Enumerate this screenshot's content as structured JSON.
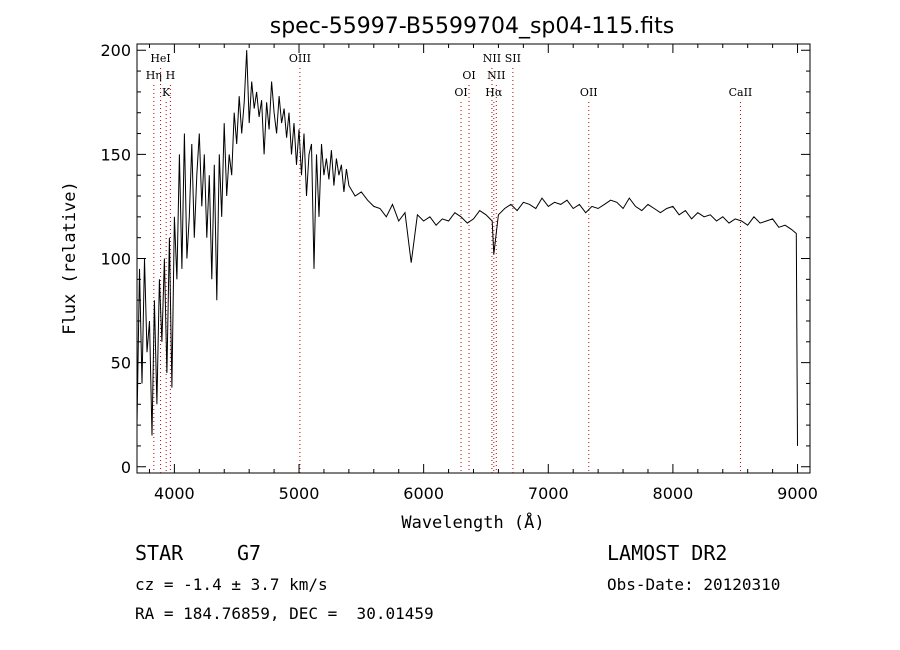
{
  "chart_data": {
    "type": "line",
    "title": "spec-55997-B5599704_sp04-115.fits",
    "xlabel": "Wavelength (Å)",
    "ylabel": "Flux (relative)",
    "xlim": [
      3700,
      9100
    ],
    "ylim": [
      -3,
      203
    ],
    "xticks": [
      4000,
      5000,
      6000,
      7000,
      8000,
      9000
    ],
    "yticks": [
      0,
      50,
      100,
      150,
      200
    ],
    "grid": false,
    "line_color": "#000000",
    "marker_color": "#c00000",
    "series": [
      {
        "x": [
          3700,
          3720,
          3740,
          3760,
          3780,
          3800,
          3820,
          3840,
          3860,
          3880,
          3900,
          3920,
          3940,
          3960,
          3980,
          4000,
          4020,
          4040,
          4060,
          4080,
          4100,
          4120,
          4140,
          4160,
          4180,
          4200,
          4220,
          4240,
          4260,
          4280,
          4300,
          4320,
          4340,
          4360,
          4380,
          4400,
          4420,
          4440,
          4460,
          4480,
          4500,
          4520,
          4540,
          4560,
          4580,
          4600,
          4620,
          4640,
          4660,
          4680,
          4700,
          4720,
          4740,
          4760,
          4780,
          4800,
          4820,
          4840,
          4860,
          4880,
          4900,
          4920,
          4940,
          4960,
          4980,
          5000,
          5020,
          5040,
          5060,
          5080,
          5100,
          5120,
          5140,
          5160,
          5180,
          5200,
          5220,
          5240,
          5260,
          5280,
          5300,
          5320,
          5340,
          5360,
          5380,
          5400,
          5450,
          5500,
          5550,
          5600,
          5650,
          5700,
          5750,
          5800,
          5850,
          5900,
          5950,
          6000,
          6050,
          6100,
          6150,
          6200,
          6250,
          6300,
          6350,
          6400,
          6450,
          6500,
          6550,
          6563,
          6600,
          6650,
          6700,
          6750,
          6800,
          6850,
          6900,
          6950,
          7000,
          7050,
          7100,
          7150,
          7200,
          7250,
          7300,
          7350,
          7400,
          7450,
          7500,
          7550,
          7600,
          7650,
          7700,
          7750,
          7800,
          7850,
          7900,
          7950,
          8000,
          8050,
          8100,
          8150,
          8200,
          8250,
          8300,
          8350,
          8400,
          8450,
          8500,
          8550,
          8600,
          8650,
          8700,
          8750,
          8800,
          8850,
          8900,
          8950,
          8990,
          9000
        ],
        "y": [
          20,
          95,
          40,
          100,
          55,
          70,
          15,
          80,
          30,
          90,
          60,
          100,
          45,
          110,
          38,
          120,
          90,
          150,
          95,
          160,
          100,
          120,
          155,
          110,
          140,
          160,
          125,
          150,
          110,
          140,
          90,
          145,
          80,
          150,
          120,
          165,
          130,
          150,
          140,
          170,
          155,
          178,
          160,
          175,
          200,
          165,
          185,
          172,
          180,
          168,
          176,
          150,
          175,
          162,
          185,
          170,
          160,
          178,
          165,
          172,
          158,
          170,
          150,
          165,
          145,
          162,
          140,
          160,
          130,
          150,
          155,
          95,
          150,
          120,
          155,
          140,
          148,
          138,
          152,
          135,
          148,
          140,
          145,
          132,
          143,
          135,
          130,
          132,
          128,
          125,
          124,
          120,
          126,
          118,
          122,
          98,
          121,
          118,
          120,
          116,
          119,
          118,
          122,
          120,
          117,
          119,
          123,
          121,
          118,
          102,
          121,
          124,
          126,
          123,
          127,
          126,
          124,
          129,
          125,
          127,
          126,
          128,
          124,
          126,
          122,
          125,
          124,
          126,
          128,
          127,
          124,
          129,
          125,
          123,
          126,
          124,
          122,
          124,
          125,
          121,
          123,
          119,
          122,
          120,
          121,
          118,
          120,
          117,
          119,
          118,
          116,
          120,
          117,
          118,
          119,
          115,
          116,
          114,
          112,
          10
        ]
      }
    ],
    "lines": [
      {
        "label": "HeI",
        "x": 3889,
        "row": 1
      },
      {
        "label": "Hη",
        "x": 3835,
        "row": 2
      },
      {
        "label": "H",
        "x": 3968,
        "row": 2
      },
      {
        "label": "K",
        "x": 3934,
        "row": 3
      },
      {
        "label": "OIII",
        "x": 5007,
        "row": 1
      },
      {
        "label": "OI",
        "x": 6300,
        "row": 3
      },
      {
        "label": "OI",
        "x": 6364,
        "row": 2
      },
      {
        "label": "NII",
        "x": 6548,
        "row": 1
      },
      {
        "label": "NII",
        "x": 6583,
        "row": 2
      },
      {
        "label": "Hα",
        "x": 6563,
        "row": 3
      },
      {
        "label": "SII",
        "x": 6716,
        "row": 1
      },
      {
        "label": "OII",
        "x": 7325,
        "row": 3
      },
      {
        "label": "CaII",
        "x": 8542,
        "row": 3
      }
    ]
  },
  "info": {
    "class_label": "STAR",
    "subclass": "G7",
    "redshift": "cz = -1.4 ± 3.7 km/s",
    "coords": "RA = 184.76859, DEC =  30.01459",
    "survey": "LAMOST DR2",
    "obs_date": "Obs-Date: 20120310"
  }
}
